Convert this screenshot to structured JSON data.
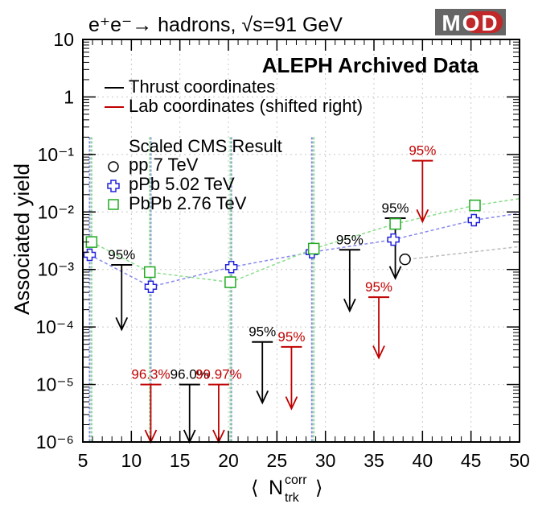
{
  "chart_data": {
    "type": "scatter",
    "process_label": "e⁺e⁻→ hadrons, √s=91 GeV",
    "badge": "MOD",
    "title": "ALEPH Archived Data",
    "xlabel": "⟨ N_trk^corr ⟩",
    "ylabel": "Associated yield",
    "xlim": [
      5,
      50
    ],
    "ylim": [
      1e-06,
      10
    ],
    "y_scale": "log",
    "x_ticks": [
      5,
      10,
      15,
      20,
      25,
      30,
      35,
      40,
      45,
      50
    ],
    "y_tick_labels": [
      "10⁻⁶",
      "10⁻⁵",
      "10⁻⁴",
      "10⁻³",
      "10⁻²",
      "10⁻¹",
      "1",
      "10"
    ],
    "legend_lines": [
      {
        "name": "Thrust coordinates",
        "color": "#000000"
      },
      {
        "name": "Lab coordinates (shifted right)",
        "color": "#c00000"
      }
    ],
    "legend_header": "Scaled CMS Result",
    "legend_markers": [
      {
        "name": "pp 7 TeV",
        "marker": "circle",
        "color": "#000000"
      },
      {
        "name": "pPb 5.02 TeV",
        "marker": "cross",
        "color": "#2222dd"
      },
      {
        "name": "PbPb 2.76 TeV",
        "marker": "square",
        "color": "#22aa22"
      }
    ],
    "series": [
      {
        "name": "pp 7 TeV",
        "color": "#000000",
        "line_color": "#bbbbbb",
        "points": [
          {
            "x": 38.2,
            "y": 0.0015
          }
        ],
        "trend": [
          [
            38.5,
            0.0015
          ],
          [
            50,
            0.0025
          ]
        ]
      },
      {
        "name": "pPb 5.02 TeV",
        "color": "#2222dd",
        "line_color": "#8888ee",
        "points": [
          {
            "x": 5.7,
            "y": 0.0018
          },
          {
            "x": 12.0,
            "y": 0.0005
          },
          {
            "x": 20.3,
            "y": 0.0011
          },
          {
            "x": 28.6,
            "y": 0.002
          },
          {
            "x": 37.0,
            "y": 0.0033
          },
          {
            "x": 45.3,
            "y": 0.0072
          }
        ],
        "trend": [
          [
            5.7,
            0.0018
          ],
          [
            12.0,
            0.0005
          ],
          [
            20.3,
            0.0011
          ],
          [
            28.6,
            0.002
          ],
          [
            37.0,
            0.0033
          ],
          [
            45.3,
            0.0072
          ],
          [
            50,
            0.0095
          ]
        ]
      },
      {
        "name": "PbPb 2.76 TeV",
        "color": "#22aa22",
        "line_color": "#88dd88",
        "points": [
          {
            "x": 5.9,
            "y": 0.003
          },
          {
            "x": 11.9,
            "y": 0.0009
          },
          {
            "x": 20.2,
            "y": 0.0006
          },
          {
            "x": 28.8,
            "y": 0.0023
          },
          {
            "x": 37.2,
            "y": 0.0062
          },
          {
            "x": 45.4,
            "y": 0.013
          }
        ],
        "trend": [
          [
            5.9,
            0.003
          ],
          [
            11.9,
            0.0009
          ],
          [
            20.2,
            0.0006
          ],
          [
            28.8,
            0.0023
          ],
          [
            37.2,
            0.0062
          ],
          [
            45.4,
            0.013
          ],
          [
            50,
            0.017
          ]
        ]
      }
    ],
    "vertical_error_bars": [
      {
        "x": 5.7,
        "color": "#8888ee"
      },
      {
        "x": 5.9,
        "color": "#88dd88"
      },
      {
        "x": 12.0,
        "color": "#8888ee"
      },
      {
        "x": 11.9,
        "color": "#88dd88"
      },
      {
        "x": 20.3,
        "color": "#8888ee"
      },
      {
        "x": 20.2,
        "color": "#88dd88"
      },
      {
        "x": 28.6,
        "color": "#8888ee"
      },
      {
        "x": 28.8,
        "color": "#88dd88"
      }
    ],
    "upper_limits": [
      {
        "x": 9.0,
        "y": 0.0012,
        "tip": 9e-05,
        "label": "95%",
        "coordinates": "thrust",
        "color": "#000000"
      },
      {
        "x": 16.0,
        "y": 1e-05,
        "tip": 1e-06,
        "label": "96.0%",
        "coordinates": "thrust",
        "color": "#000000"
      },
      {
        "x": 23.5,
        "y": 5.5e-05,
        "tip": 4.8e-06,
        "label": "95%",
        "coordinates": "thrust",
        "color": "#000000"
      },
      {
        "x": 32.5,
        "y": 0.0022,
        "tip": 0.00019,
        "label": "95%",
        "coordinates": "thrust",
        "color": "#000000"
      },
      {
        "x": 37.2,
        "y": 0.0078,
        "tip": 0.0007,
        "label": "95%",
        "coordinates": "thrust",
        "color": "#000000"
      },
      {
        "x": 12.0,
        "y": 1e-05,
        "tip": 1e-06,
        "label": "96.3%",
        "coordinates": "lab",
        "color": "#c00000"
      },
      {
        "x": 19.0,
        "y": 1e-05,
        "tip": 1e-06,
        "label": "99.97%",
        "coordinates": "lab",
        "color": "#c00000"
      },
      {
        "x": 26.5,
        "y": 4.5e-05,
        "tip": 3.8e-06,
        "label": "95%",
        "coordinates": "lab",
        "color": "#c00000"
      },
      {
        "x": 35.5,
        "y": 0.00033,
        "tip": 2.9e-05,
        "label": "95%",
        "coordinates": "lab",
        "color": "#c00000"
      },
      {
        "x": 40.0,
        "y": 0.078,
        "tip": 0.0068,
        "label": "95%",
        "coordinates": "lab",
        "color": "#c00000"
      }
    ]
  }
}
